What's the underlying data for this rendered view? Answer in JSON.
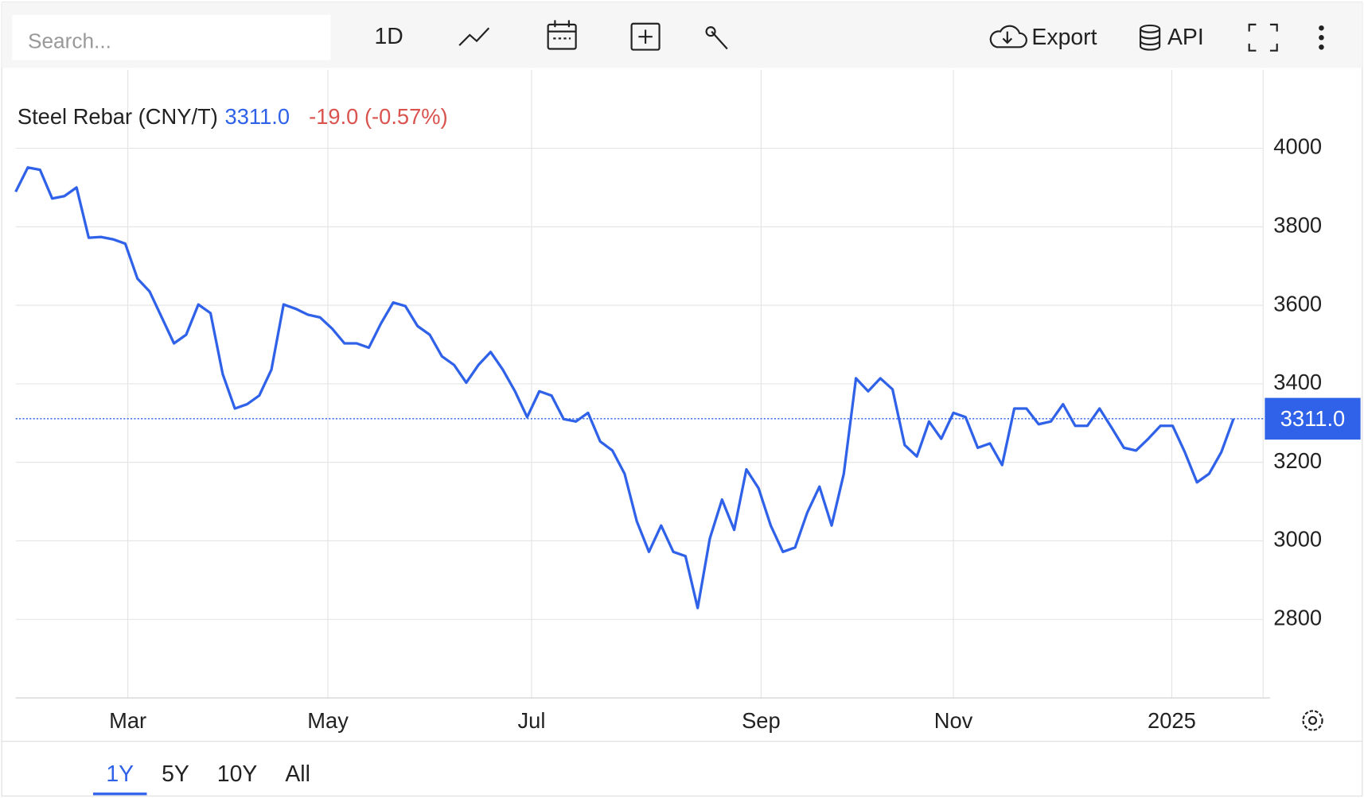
{
  "toolbar": {
    "search": "Search...",
    "interval": "1D",
    "export": "Export",
    "api": "API"
  },
  "ranges": [
    "1Y",
    "5Y",
    "10Y",
    "All"
  ],
  "chart_data": {
    "type": "line",
    "change": "-19.0 (-0.57%)",
    "last": {
      "value": 3311,
      "label": "3311.0"
    },
    "series": [
      {
        "name": "Steel Rebar (CNY/T)",
        "color": "#2f62e8",
        "values": [
          3889,
          3951,
          3945,
          3872,
          3878,
          3900,
          3772,
          3774,
          3768,
          3757,
          3668,
          3635,
          3569,
          3503,
          3525,
          3602,
          3580,
          3425,
          3337,
          3348,
          3370,
          3436,
          3602,
          3591,
          3576,
          3569,
          3540,
          3503,
          3503,
          3492,
          3554,
          3607,
          3598,
          3547,
          3525,
          3470,
          3448,
          3403,
          3448,
          3481,
          3436,
          3381,
          3315,
          3381,
          3370,
          3310,
          3304,
          3326,
          3253,
          3230,
          3171,
          3050,
          2972,
          3039,
          2972,
          2961,
          2829,
          3006,
          3105,
          3028,
          3182,
          3134,
          3039,
          2972,
          2983,
          3072,
          3138,
          3039,
          3171,
          3414,
          3381,
          3414,
          3386,
          3244,
          3215,
          3304,
          3260,
          3326,
          3315,
          3237,
          3248,
          3193,
          3337,
          3337,
          3297,
          3304,
          3348,
          3293,
          3293,
          3337,
          3288,
          3237,
          3230,
          3260,
          3293,
          3293,
          3226,
          3149,
          3171,
          3226,
          3311
        ]
      }
    ],
    "ylim": [
      2600,
      4200
    ],
    "yticks": [
      2800,
      3000,
      3200,
      3400,
      3600,
      3800,
      4000
    ],
    "xticks": [
      {
        "value": 9.21,
        "label": "Mar"
      },
      {
        "value": 25.64,
        "label": "May"
      },
      {
        "value": 42.36,
        "label": "Jul"
      },
      {
        "value": 61.21,
        "label": "Sep"
      },
      {
        "value": 77,
        "label": "Nov"
      },
      {
        "value": 94.93,
        "label": "2025"
      }
    ],
    "grid": true
  }
}
